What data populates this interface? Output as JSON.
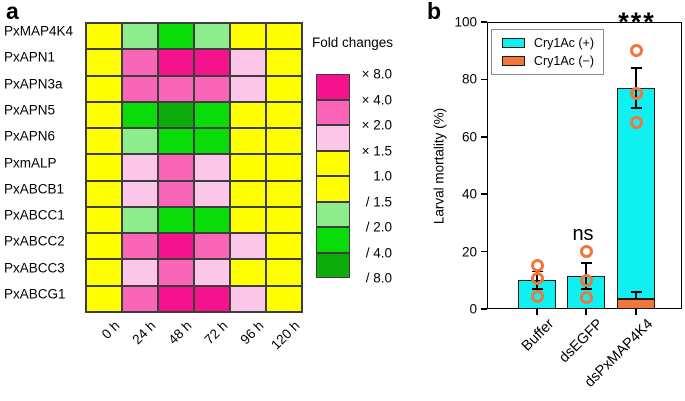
{
  "panel_a": {
    "label": "a",
    "legend": {
      "title": "Fold changes",
      "blocks": [
        "#F5138D",
        "#F966B8",
        "#FBC6E8",
        "#FFFF00",
        "#FFFF00",
        "#8DED8D",
        "#0ADC0A",
        "#0CAC0C"
      ],
      "labels": [
        "× 8.0",
        "× 4.0",
        "× 2.0",
        "× 1.5",
        "1.0",
        "/ 1.5",
        "/ 2.0",
        "/ 4.0",
        "/ 8.0"
      ]
    }
  },
  "panel_b": {
    "label": "b",
    "ylabel": "Larval mortality (%)",
    "legend": [
      {
        "label": "Cry1Ac (+)",
        "color": "#0FF0F0"
      },
      {
        "label": "Cry1Ac (−)",
        "color": "#F0763C"
      }
    ]
  },
  "chart_data": [
    {
      "type": "heatmap",
      "title": "Fold changes",
      "rows": [
        "PxMAP4K4",
        "PxAPN1",
        "PxAPN3a",
        "PxAPN5",
        "PxAPN6",
        "PxmALP",
        "PxABCB1",
        "PxABCC1",
        "PxABCC2",
        "PxABCC3",
        "PxABCG1"
      ],
      "columns": [
        "0 h",
        "24 h",
        "48 h",
        "72 h",
        "96 h",
        "120 h"
      ],
      "values": [
        [
          "1.0",
          "/1.5",
          "/2.0",
          "/1.5",
          "1.0",
          "1.0"
        ],
        [
          "1.0",
          "×4.0",
          "×8.0",
          "×8.0",
          "×2.0",
          "1.0"
        ],
        [
          "1.0",
          "×4.0",
          "×4.0",
          "×4.0",
          "×2.0",
          "1.0"
        ],
        [
          "1.0",
          "/2.0",
          "/4.0",
          "/2.0",
          "1.0",
          "1.0"
        ],
        [
          "1.0",
          "/1.5",
          "/2.0",
          "/2.0",
          "1.0",
          "1.0"
        ],
        [
          "1.0",
          "×2.0",
          "×4.0",
          "×2.0",
          "1.0",
          "1.0"
        ],
        [
          "1.0",
          "×2.0",
          "×4.0",
          "×2.0",
          "1.0",
          "1.0"
        ],
        [
          "1.0",
          "/1.5",
          "/2.0",
          "/2.0",
          "1.0",
          "1.0"
        ],
        [
          "1.0",
          "×4.0",
          "×8.0",
          "×4.0",
          "×2.0",
          "1.0"
        ],
        [
          "1.0",
          "×2.0",
          "×4.0",
          "×2.0",
          "1.0",
          "1.0"
        ],
        [
          "1.0",
          "×4.0",
          "×8.0",
          "×8.0",
          "×2.0",
          "1.0"
        ]
      ],
      "color_map": {
        "×8.0": "#F5138D",
        "×4.0": "#F966B8",
        "×2.0": "#FBC6E8",
        "1.0": "#FFFF00",
        "/1.5": "#8DED8D",
        "/2.0": "#0ADC0A",
        "/4.0": "#0CAC0C"
      },
      "scale_labels": [
        "× 8.0",
        "× 4.0",
        "× 2.0",
        "× 1.5",
        "1.0",
        "/ 1.5",
        "/ 2.0",
        "/ 4.0",
        "/ 8.0"
      ]
    },
    {
      "type": "bar",
      "categories": [
        "Buffer",
        "dsEGFP",
        "dsPxMAP4K4"
      ],
      "series": [
        {
          "name": "Cry1Ac (+)",
          "color": "#0FF0F0",
          "bar_top": [
            10,
            11.5,
            77
          ]
        },
        {
          "name": "Cry1Ac (−)",
          "color": "#F0763C",
          "bar_top": [
            0,
            0,
            3.5
          ]
        }
      ],
      "error_bars": {
        "cry1ac_plus": {
          "high": [
            13,
            16,
            84
          ],
          "low": [
            7,
            7,
            70
          ]
        },
        "cry1ac_minus": {
          "high": [
            null,
            null,
            6
          ],
          "low": [
            null,
            null,
            3.5
          ]
        }
      },
      "points": [
        [
          15,
          10.5,
          4.5
        ],
        [
          20,
          10,
          4
        ],
        [
          90,
          75,
          65
        ]
      ],
      "point_color": "#F0763C",
      "significance": [
        "",
        "ns",
        "***"
      ],
      "ylabel": "Larval mortality (%)",
      "ylim": [
        0,
        100
      ],
      "yticks": [
        0,
        20,
        40,
        60,
        80,
        100
      ],
      "legend_position": "upper left",
      "grid": false
    }
  ]
}
